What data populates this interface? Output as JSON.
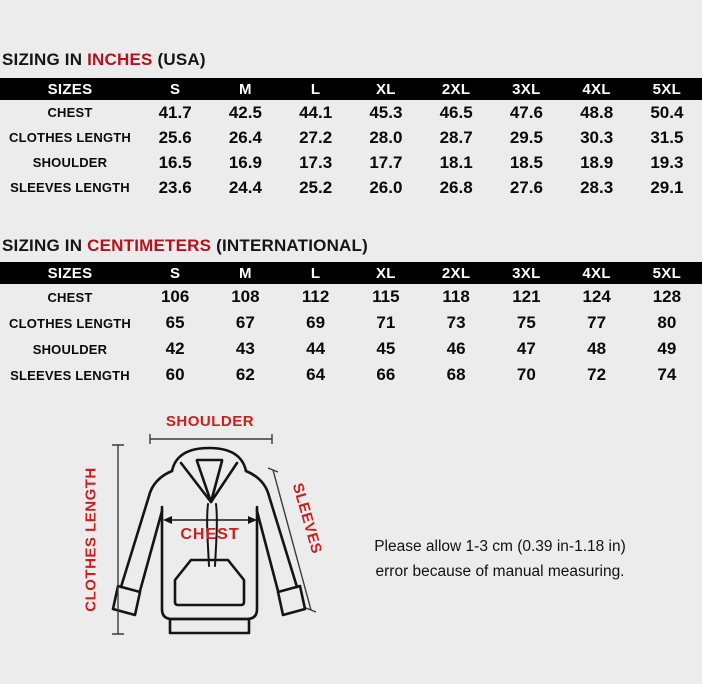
{
  "colors": {
    "page_background": "#ececec",
    "title_accent_red": "#b5121b",
    "diagram_label_red": "#c9201f",
    "table_header_bg": "#000000",
    "table_header_text": "#ffffff"
  },
  "sections": {
    "inches": {
      "title": {
        "prefix": "SIZING IN ",
        "accent": "INCHES",
        "suffix": " (USA)"
      },
      "table": {
        "headers": [
          "SIZES",
          "S",
          "M",
          "L",
          "XL",
          "2XL",
          "3XL",
          "4XL",
          "5XL"
        ],
        "rows": [
          [
            "CHEST",
            "41.7",
            "42.5",
            "44.1",
            "45.3",
            "46.5",
            "47.6",
            "48.8",
            "50.4"
          ],
          [
            "CLOTHES LENGTH",
            "25.6",
            "26.4",
            "27.2",
            "28.0",
            "28.7",
            "29.5",
            "30.3",
            "31.5"
          ],
          [
            "SHOULDER",
            "16.5",
            "16.9",
            "17.3",
            "17.7",
            "18.1",
            "18.5",
            "18.9",
            "19.3"
          ],
          [
            "SLEEVES LENGTH",
            "23.6",
            "24.4",
            "25.2",
            "26.0",
            "26.8",
            "27.6",
            "28.3",
            "29.1"
          ]
        ]
      }
    },
    "cm": {
      "title": {
        "prefix": "SIZING IN ",
        "accent": "CENTIMETERS",
        "suffix": " (INTERNATIONAL)"
      },
      "table": {
        "headers": [
          "SIZES",
          "S",
          "M",
          "L",
          "XL",
          "2XL",
          "3XL",
          "4XL",
          "5XL"
        ],
        "rows": [
          [
            "CHEST",
            "106",
            "108",
            "112",
            "115",
            "118",
            "121",
            "124",
            "128"
          ],
          [
            "CLOTHES LENGTH",
            "65",
            "67",
            "69",
            "71",
            "73",
            "75",
            "77",
            "80"
          ],
          [
            "SHOULDER",
            "42",
            "43",
            "44",
            "45",
            "46",
            "47",
            "48",
            "49"
          ],
          [
            "SLEEVES LENGTH",
            "60",
            "62",
            "64",
            "66",
            "68",
            "70",
            "72",
            "74"
          ]
        ]
      }
    }
  },
  "diagram": {
    "shoulder_label": "SHOULDER",
    "clothes_length_label": "CLOTHES LENGTH",
    "sleeves_label": "SLEEVES",
    "chest_label": "CHEST"
  },
  "note": {
    "line1": "Please allow 1-3 cm (0.39 in-1.18 in)",
    "line2": "error because of manual measuring."
  }
}
